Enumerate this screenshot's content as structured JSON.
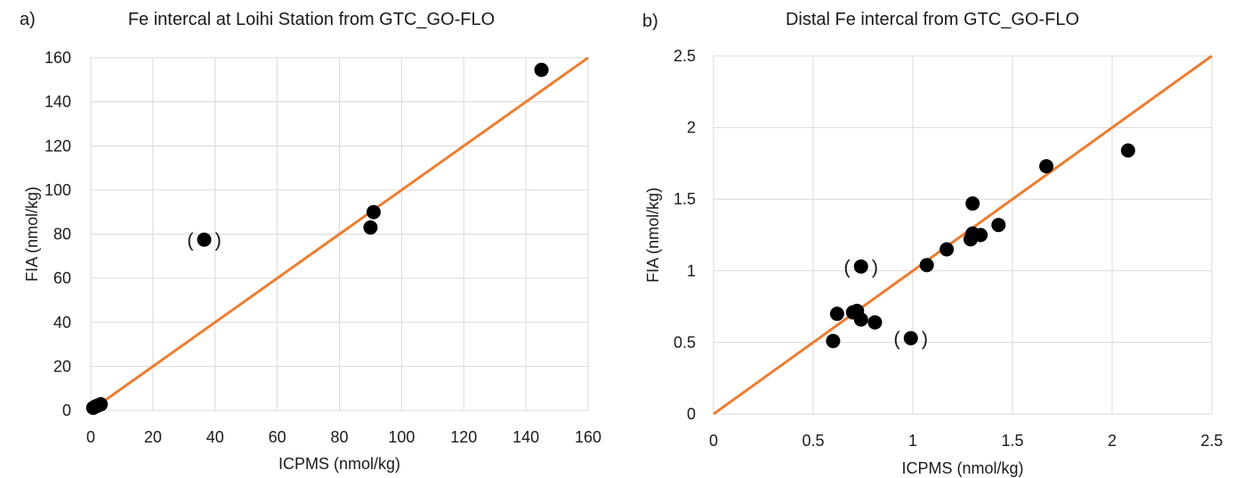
{
  "chart_data": [
    {
      "panel_label": "a)",
      "type": "scatter",
      "title": "Fe intercal at Loihi Station from GTC_GO-FLO",
      "xlabel": "ICPMS (nmol/kg)",
      "ylabel": "FIA (nmol/kg)",
      "xlim": [
        0,
        160
      ],
      "ylim": [
        0,
        160
      ],
      "xticks": [
        0,
        20,
        40,
        60,
        80,
        100,
        120,
        140,
        160
      ],
      "yticks": [
        0,
        20,
        40,
        60,
        80,
        100,
        120,
        140,
        160
      ],
      "xtick_labels": [
        "0",
        "20",
        "40",
        "60",
        "80",
        "100",
        "120",
        "140",
        "160"
      ],
      "ytick_labels": [
        "0",
        "20",
        "40",
        "60",
        "80",
        "100",
        "120",
        "140",
        "160"
      ],
      "grid": true,
      "points": [
        {
          "x": 0.8,
          "y": 1.2
        },
        {
          "x": 1.5,
          "y": 1.8
        },
        {
          "x": 2.2,
          "y": 2.2
        },
        {
          "x": 3.2,
          "y": 2.8
        },
        {
          "x": 36.5,
          "y": 77.5,
          "parenthesized": true
        },
        {
          "x": 90,
          "y": 83
        },
        {
          "x": 91,
          "y": 90
        },
        {
          "x": 145,
          "y": 154.5
        }
      ],
      "reference_line": {
        "type": "1:1",
        "x": [
          0,
          160
        ],
        "y": [
          0,
          160
        ],
        "color": "#ED7D31"
      },
      "marker_color": "#000000",
      "parenthesis_text": "( )"
    },
    {
      "panel_label": "b)",
      "type": "scatter",
      "title": "Distal Fe intercal from GTC_GO-FLO",
      "xlabel": "ICPMS (nmol/kg)",
      "ylabel": "FIA (nmol/kg)",
      "xlim": [
        0,
        2.5
      ],
      "ylim": [
        0,
        2.5
      ],
      "xticks": [
        0,
        0.5,
        1,
        1.5,
        2,
        2.5
      ],
      "yticks": [
        0,
        0.5,
        1,
        1.5,
        2,
        2.5
      ],
      "xtick_labels": [
        "0",
        "0.5",
        "1",
        "1.5",
        "2",
        "2.5"
      ],
      "ytick_labels": [
        "0",
        "0.5",
        "1",
        "1.5",
        "2",
        "2.5"
      ],
      "grid": true,
      "points": [
        {
          "x": 0.6,
          "y": 0.51
        },
        {
          "x": 0.62,
          "y": 0.7
        },
        {
          "x": 0.7,
          "y": 0.71
        },
        {
          "x": 0.72,
          "y": 0.72
        },
        {
          "x": 0.74,
          "y": 0.66
        },
        {
          "x": 0.81,
          "y": 0.64
        },
        {
          "x": 0.74,
          "y": 1.03,
          "parenthesized": true
        },
        {
          "x": 0.99,
          "y": 0.53,
          "parenthesized": true
        },
        {
          "x": 1.07,
          "y": 1.04
        },
        {
          "x": 1.17,
          "y": 1.15
        },
        {
          "x": 1.29,
          "y": 1.22
        },
        {
          "x": 1.3,
          "y": 1.26
        },
        {
          "x": 1.3,
          "y": 1.47
        },
        {
          "x": 1.34,
          "y": 1.25
        },
        {
          "x": 1.43,
          "y": 1.32
        },
        {
          "x": 1.67,
          "y": 1.73
        },
        {
          "x": 2.08,
          "y": 1.84
        }
      ],
      "reference_line": {
        "type": "1:1",
        "x": [
          0,
          2.5
        ],
        "y": [
          0,
          2.5
        ],
        "color": "#ED7D31"
      },
      "marker_color": "#000000",
      "parenthesis_text": "( )"
    }
  ]
}
